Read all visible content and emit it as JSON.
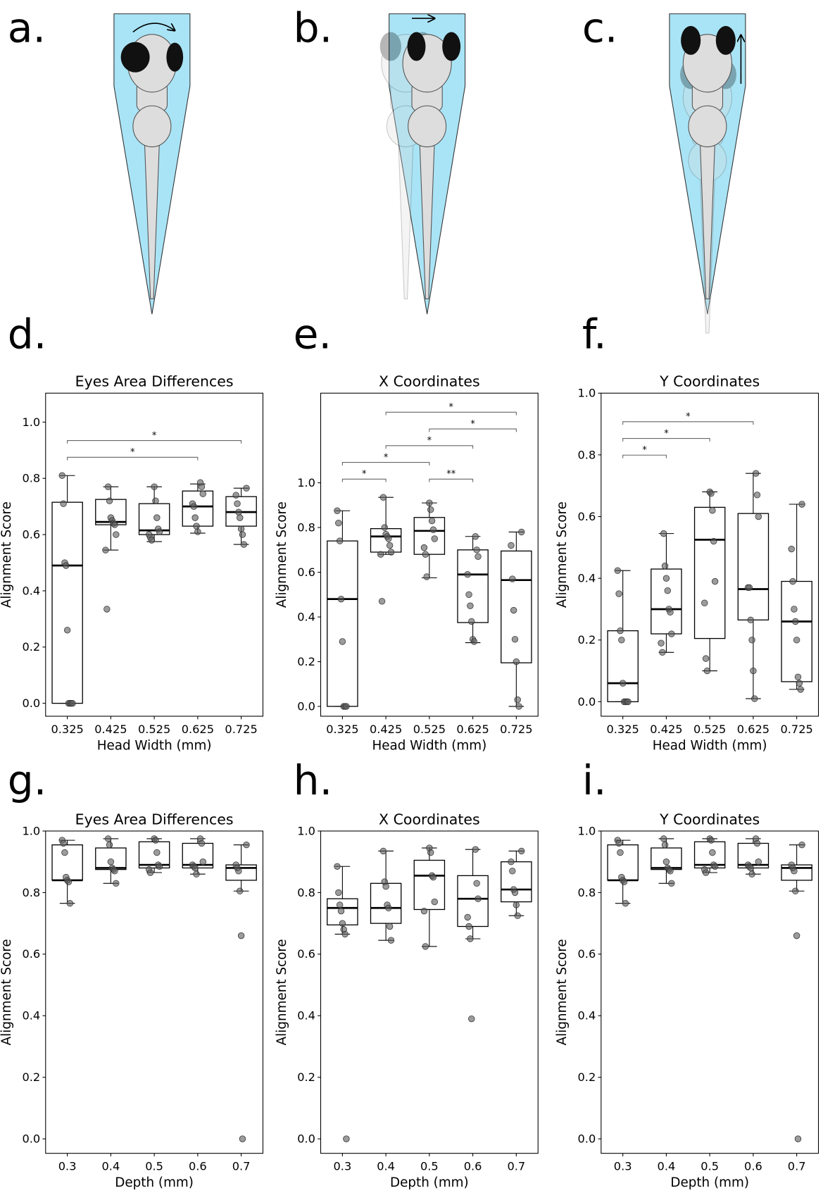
{
  "panel_labels": [
    "a.",
    "b.",
    "c.",
    "d.",
    "e.",
    "f.",
    "g.",
    "h.",
    "i."
  ],
  "chart_data": [
    {
      "type": "box",
      "title": "Eyes Area Differences",
      "xlabel": "Head Width (mm)",
      "ylabel": "Alignment Score",
      "categories": [
        "0.325",
        "0.425",
        "0.525",
        "0.625",
        "0.725"
      ],
      "ylim": [
        -0.046,
        1.103
      ],
      "yticks": [
        {
          "value": 0,
          "label": "0.0"
        },
        0.2,
        0.4,
        0.6,
        0.8,
        {
          "value": 1,
          "label": "1.0"
        }
      ],
      "boxes": [
        {
          "whislo": 0,
          "q1": 0,
          "med": 0.49,
          "q3": 0.715,
          "whishi": 0.81,
          "points": [
            0.81,
            0.71,
            0.5,
            0.49,
            0.26,
            0,
            0,
            0,
            0
          ]
        },
        {
          "whislo": 0.545,
          "q1": 0.635,
          "med": 0.645,
          "q3": 0.725,
          "whishi": 0.77,
          "points": [
            0.77,
            0.72,
            0.66,
            0.65,
            0.64,
            0.635,
            0.6,
            0.545,
            0.335
          ]
        },
        {
          "whislo": 0.575,
          "q1": 0.6,
          "med": 0.615,
          "q3": 0.71,
          "whishi": 0.77,
          "points": [
            0.77,
            0.72,
            0.66,
            0.62,
            0.61,
            0.6,
            0.59,
            0.58
          ]
        },
        {
          "whislo": 0.605,
          "q1": 0.63,
          "med": 0.7,
          "q3": 0.755,
          "whishi": 0.78,
          "points": [
            0.785,
            0.77,
            0.745,
            0.71,
            0.7,
            0.66,
            0.63,
            0.61
          ]
        },
        {
          "whislo": 0.565,
          "q1": 0.63,
          "med": 0.68,
          "q3": 0.735,
          "whishi": 0.765,
          "points": [
            0.765,
            0.74,
            0.71,
            0.68,
            0.66,
            0.62,
            0.6,
            0.565
          ]
        }
      ],
      "annotations": [
        {
          "pair": [
            0,
            3
          ],
          "label": "*"
        },
        {
          "pair": [
            0,
            4
          ],
          "label": "*"
        }
      ]
    },
    {
      "type": "box",
      "title": "X Coordinates",
      "xlabel": "Head Width (mm)",
      "ylabel": "Alignment Score",
      "categories": [
        "0.325",
        "0.425",
        "0.525",
        "0.625",
        "0.725"
      ],
      "ylim": [
        -0.044,
        1.401
      ],
      "yticks": [
        {
          "value": 0,
          "label": "0.0"
        },
        0.2,
        0.4,
        0.6,
        0.8,
        {
          "value": 1,
          "label": "1.0"
        }
      ],
      "boxes": [
        {
          "whislo": 0,
          "q1": 0,
          "med": 0.48,
          "q3": 0.74,
          "whishi": 0.875,
          "points": [
            0.875,
            0.82,
            0.74,
            0.48,
            0.29,
            0,
            0,
            0
          ]
        },
        {
          "whislo": 0.68,
          "q1": 0.69,
          "med": 0.76,
          "q3": 0.795,
          "whishi": 0.935,
          "points": [
            0.935,
            0.8,
            0.77,
            0.76,
            0.75,
            0.72,
            0.69,
            0.68,
            0.47
          ]
        },
        {
          "whislo": 0.575,
          "q1": 0.68,
          "med": 0.785,
          "q3": 0.845,
          "whishi": 0.91,
          "points": [
            0.91,
            0.88,
            0.83,
            0.79,
            0.75,
            0.71,
            0.68,
            0.58
          ]
        },
        {
          "whislo": 0.285,
          "q1": 0.375,
          "med": 0.59,
          "q3": 0.7,
          "whishi": 0.76,
          "points": [
            0.76,
            0.7,
            0.67,
            0.59,
            0.5,
            0.45,
            0.38,
            0.3,
            0.29
          ]
        },
        {
          "whislo": 0,
          "q1": 0.195,
          "med": 0.565,
          "q3": 0.695,
          "whishi": 0.78,
          "points": [
            0.78,
            0.72,
            0.57,
            0.43,
            0.3,
            0.2,
            0.03,
            0
          ]
        }
      ],
      "annotations": [
        {
          "pair": [
            0,
            1
          ],
          "label": "*"
        },
        {
          "pair": [
            2,
            3
          ],
          "label": "**"
        },
        {
          "pair": [
            0,
            2
          ],
          "label": "*"
        },
        {
          "pair": [
            1,
            3
          ],
          "label": "*"
        },
        {
          "pair": [
            2,
            4
          ],
          "label": "*"
        },
        {
          "pair": [
            1,
            4
          ],
          "label": "*"
        }
      ]
    },
    {
      "type": "box",
      "title": "Y Coordinates",
      "xlabel": "Head Width (mm)",
      "ylabel": "Alignment Score",
      "categories": [
        "0.325",
        "0.425",
        "0.525",
        "0.625",
        "0.725"
      ],
      "ylim": [
        -0.047,
        1.0
      ],
      "yticks": [
        {
          "value": 0,
          "label": "0.0"
        },
        0.2,
        0.4,
        0.6,
        0.8,
        {
          "value": 1,
          "label": "1.0"
        }
      ],
      "boxes": [
        {
          "whislo": 0,
          "q1": 0,
          "med": 0.06,
          "q3": 0.23,
          "whishi": 0.425,
          "points": [
            0.425,
            0.35,
            0.23,
            0.2,
            0.06,
            0,
            0,
            0,
            0
          ]
        },
        {
          "whislo": 0.16,
          "q1": 0.22,
          "med": 0.3,
          "q3": 0.43,
          "whishi": 0.545,
          "points": [
            0.545,
            0.44,
            0.4,
            0.36,
            0.3,
            0.29,
            0.22,
            0.19,
            0.16
          ]
        },
        {
          "whislo": 0.1,
          "q1": 0.205,
          "med": 0.525,
          "q3": 0.63,
          "whishi": 0.68,
          "points": [
            0.68,
            0.675,
            0.62,
            0.52,
            0.39,
            0.32,
            0.14,
            0.1
          ]
        },
        {
          "whislo": 0.01,
          "q1": 0.265,
          "med": 0.365,
          "q3": 0.61,
          "whishi": 0.74,
          "points": [
            0.74,
            0.67,
            0.6,
            0.37,
            0.37,
            0.265,
            0.2,
            0.1,
            0.01
          ]
        },
        {
          "whislo": 0.04,
          "q1": 0.065,
          "med": 0.26,
          "q3": 0.39,
          "whishi": 0.64,
          "points": [
            0.64,
            0.495,
            0.39,
            0.3,
            0.26,
            0.2,
            0.08,
            0.06,
            0.04
          ]
        }
      ],
      "annotations": [
        {
          "pair": [
            0,
            1
          ],
          "label": "*"
        },
        {
          "pair": [
            0,
            2
          ],
          "label": "*"
        },
        {
          "pair": [
            0,
            3
          ],
          "label": "*"
        }
      ]
    },
    {
      "type": "box",
      "title": "Eyes Area Differences",
      "xlabel": "Depth (mm)",
      "ylabel": "Alignment Score",
      "categories": [
        "0.3",
        "0.4",
        "0.5",
        "0.6",
        "0.7"
      ],
      "ylim": [
        -0.047,
        1.0
      ],
      "yticks": [
        {
          "value": 0,
          "label": "0.0"
        },
        0.2,
        0.4,
        0.6,
        0.8,
        {
          "value": 1,
          "label": "1.0"
        }
      ],
      "boxes": [
        {
          "whislo": 0.765,
          "q1": 0.84,
          "med": 0.84,
          "q3": 0.955,
          "whishi": 0.97,
          "points": [
            0.97,
            0.96,
            0.93,
            0.85,
            0.84,
            0.835,
            0.765
          ]
        },
        {
          "whislo": 0.83,
          "q1": 0.875,
          "med": 0.88,
          "q3": 0.945,
          "whishi": 0.975,
          "points": [
            0.975,
            0.955,
            0.9,
            0.88,
            0.875,
            0.87,
            0.83
          ]
        },
        {
          "whislo": 0.865,
          "q1": 0.88,
          "med": 0.89,
          "q3": 0.965,
          "whishi": 0.975,
          "points": [
            0.975,
            0.97,
            0.93,
            0.89,
            0.885,
            0.875,
            0.865
          ]
        },
        {
          "whislo": 0.86,
          "q1": 0.88,
          "med": 0.89,
          "q3": 0.96,
          "whishi": 0.975,
          "points": [
            0.975,
            0.96,
            0.9,
            0.89,
            0.885,
            0.88,
            0.86
          ]
        },
        {
          "whislo": 0.805,
          "q1": 0.84,
          "med": 0.88,
          "q3": 0.89,
          "whishi": 0.955,
          "points": [
            0.955,
            0.89,
            0.88,
            0.87,
            0.805,
            0.66,
            0
          ]
        }
      ]
    },
    {
      "type": "box",
      "title": "X Coordinates",
      "xlabel": "Depth (mm)",
      "ylabel": "Alignment Score",
      "categories": [
        "0.3",
        "0.4",
        "0.5",
        "0.6",
        "0.7"
      ],
      "ylim": [
        -0.047,
        1.0
      ],
      "yticks": [
        {
          "value": 0,
          "label": "0.0"
        },
        0.2,
        0.4,
        0.6,
        0.8,
        {
          "value": 1,
          "label": "1.0"
        }
      ],
      "boxes": [
        {
          "whislo": 0.665,
          "q1": 0.695,
          "med": 0.75,
          "q3": 0.78,
          "whishi": 0.885,
          "points": [
            0.885,
            0.8,
            0.76,
            0.74,
            0.7,
            0.68,
            0.665,
            0
          ]
        },
        {
          "whislo": 0.645,
          "q1": 0.7,
          "med": 0.75,
          "q3": 0.83,
          "whishi": 0.935,
          "points": [
            0.935,
            0.835,
            0.82,
            0.76,
            0.75,
            0.69,
            0.645
          ]
        },
        {
          "whislo": 0.625,
          "q1": 0.745,
          "med": 0.855,
          "q3": 0.905,
          "whishi": 0.945,
          "points": [
            0.945,
            0.93,
            0.855,
            0.85,
            0.77,
            0.74,
            0.625
          ]
        },
        {
          "whislo": 0.65,
          "q1": 0.69,
          "med": 0.78,
          "q3": 0.855,
          "whishi": 0.94,
          "points": [
            0.94,
            0.83,
            0.78,
            0.72,
            0.69,
            0.65,
            0.39
          ]
        },
        {
          "whislo": 0.725,
          "q1": 0.77,
          "med": 0.81,
          "q3": 0.9,
          "whishi": 0.935,
          "points": [
            0.935,
            0.9,
            0.87,
            0.81,
            0.8,
            0.76,
            0.725
          ]
        }
      ]
    },
    {
      "type": "box",
      "title": "Y Coordinates",
      "xlabel": "Depth (mm)",
      "ylabel": "Alignment Score",
      "categories": [
        "0.3",
        "0.4",
        "0.5",
        "0.6",
        "0.7"
      ],
      "ylim": [
        -0.047,
        1.0
      ],
      "yticks": [
        {
          "value": 0,
          "label": "0.0"
        },
        0.2,
        0.4,
        0.6,
        0.8,
        {
          "value": 1,
          "label": "1.0"
        }
      ],
      "boxes": [
        {
          "whislo": 0.765,
          "q1": 0.84,
          "med": 0.84,
          "q3": 0.955,
          "whishi": 0.97,
          "points": [
            0.97,
            0.96,
            0.93,
            0.85,
            0.84,
            0.835,
            0.765
          ]
        },
        {
          "whislo": 0.83,
          "q1": 0.875,
          "med": 0.88,
          "q3": 0.945,
          "whishi": 0.975,
          "points": [
            0.975,
            0.955,
            0.9,
            0.88,
            0.875,
            0.87,
            0.83
          ]
        },
        {
          "whislo": 0.865,
          "q1": 0.88,
          "med": 0.89,
          "q3": 0.965,
          "whishi": 0.975,
          "points": [
            0.975,
            0.97,
            0.93,
            0.89,
            0.885,
            0.875,
            0.865
          ]
        },
        {
          "whislo": 0.86,
          "q1": 0.88,
          "med": 0.89,
          "q3": 0.96,
          "whishi": 0.975,
          "points": [
            0.975,
            0.96,
            0.9,
            0.89,
            0.885,
            0.88,
            0.86
          ]
        },
        {
          "whislo": 0.805,
          "q1": 0.84,
          "med": 0.88,
          "q3": 0.89,
          "whishi": 0.955,
          "points": [
            0.955,
            0.89,
            0.88,
            0.87,
            0.805,
            0.66,
            0
          ]
        }
      ]
    }
  ]
}
